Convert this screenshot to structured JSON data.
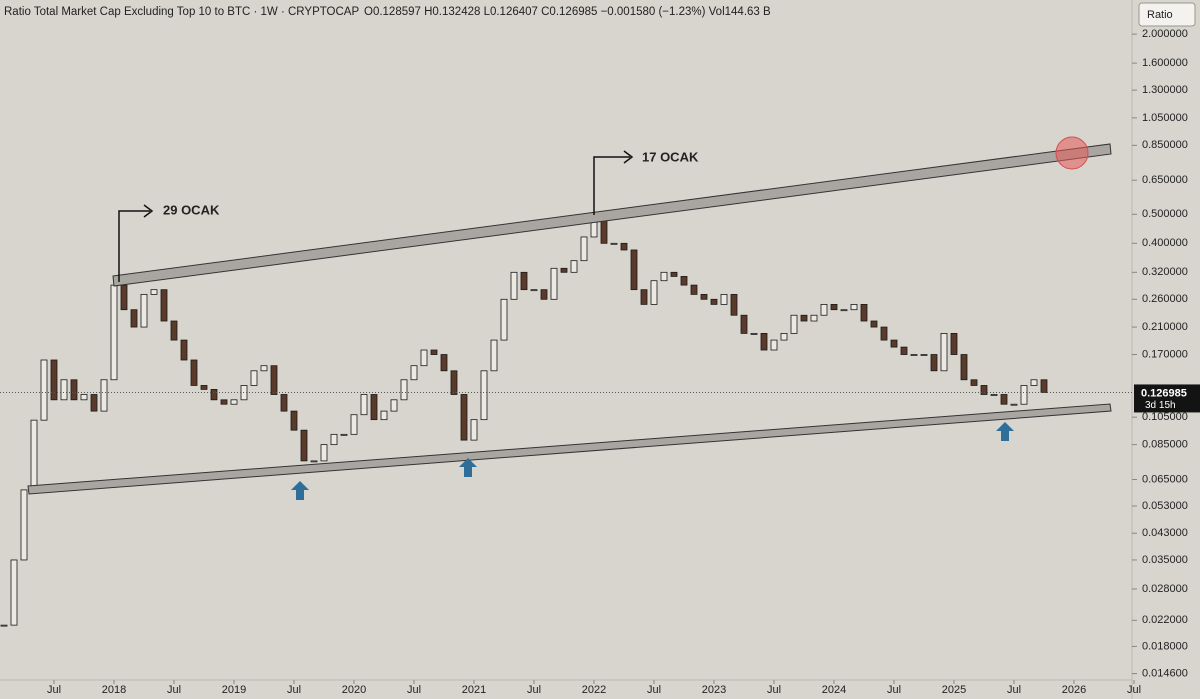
{
  "chart_data": {
    "type": "candlestick",
    "title": "Ratio Total Market Cap Excluding Top 10 to BTC · 1W · CRYPTOCAP",
    "ohlc_text": "O0.128597 H0.132428 L0.126407 C0.126985 −0.001580 (−1.23%) Vol144.63 B",
    "scale_button": "Ratio",
    "countdown": "3d 15h",
    "annotations": [
      "29 OCAK",
      "17 OCAK"
    ],
    "log_scale": true,
    "grid": false,
    "up_color": "#ece9e3",
    "down_color": "#5a3a28",
    "x": [
      "2017-02",
      "2017-03",
      "2017-04",
      "2017-05",
      "2017-06",
      "2017-07",
      "2017-08",
      "2017-09",
      "2017-10",
      "2017-11",
      "2017-12",
      "2018-01",
      "2018-02",
      "2018-03",
      "2018-04",
      "2018-05",
      "2018-06",
      "2018-07",
      "2018-08",
      "2018-09",
      "2018-10",
      "2018-11",
      "2018-12",
      "2019-01",
      "2019-02",
      "2019-03",
      "2019-04",
      "2019-05",
      "2019-06",
      "2019-07",
      "2019-08",
      "2019-09",
      "2019-10",
      "2019-11",
      "2019-12",
      "2020-01",
      "2020-02",
      "2020-03",
      "2020-04",
      "2020-05",
      "2020-06",
      "2020-07",
      "2020-08",
      "2020-09",
      "2020-10",
      "2020-11",
      "2020-12",
      "2021-01",
      "2021-02",
      "2021-03",
      "2021-04",
      "2021-05",
      "2021-06",
      "2021-07",
      "2021-08",
      "2021-09",
      "2021-10",
      "2021-11",
      "2021-12",
      "2022-01",
      "2022-02",
      "2022-03",
      "2022-04",
      "2022-05",
      "2022-06",
      "2022-07",
      "2022-08",
      "2022-09",
      "2022-10",
      "2022-11",
      "2022-12",
      "2023-01",
      "2023-02",
      "2023-03",
      "2023-04",
      "2023-05",
      "2023-06",
      "2023-07",
      "2023-08",
      "2023-09",
      "2023-10",
      "2023-11",
      "2023-12",
      "2024-01",
      "2024-02",
      "2024-03",
      "2024-04",
      "2024-05",
      "2024-06",
      "2024-07",
      "2024-08",
      "2024-09",
      "2024-10",
      "2024-11",
      "2024-12",
      "2025-01",
      "2025-02",
      "2025-03",
      "2025-04",
      "2025-05",
      "2025-06",
      "2025-07",
      "2025-08",
      "2025-09",
      "2025-10"
    ],
    "series": [
      {
        "name": "Ratio",
        "values": [
          0.0212,
          0.035,
          0.06,
          0.1026,
          0.163,
          0.12,
          0.14,
          0.12,
          0.125,
          0.11,
          0.14,
          0.29,
          0.24,
          0.21,
          0.27,
          0.28,
          0.22,
          0.19,
          0.163,
          0.134,
          0.13,
          0.12,
          0.116,
          0.12,
          0.134,
          0.15,
          0.156,
          0.125,
          0.11,
          0.095,
          0.075,
          0.075,
          0.085,
          0.092,
          0.092,
          0.107,
          0.125,
          0.103,
          0.11,
          0.12,
          0.14,
          0.156,
          0.176,
          0.17,
          0.15,
          0.125,
          0.088,
          0.103,
          0.15,
          0.19,
          0.26,
          0.32,
          0.28,
          0.28,
          0.26,
          0.33,
          0.32,
          0.35,
          0.42,
          0.48,
          0.4,
          0.4,
          0.38,
          0.28,
          0.25,
          0.3,
          0.32,
          0.31,
          0.29,
          0.27,
          0.26,
          0.25,
          0.27,
          0.23,
          0.2,
          0.2,
          0.176,
          0.19,
          0.2,
          0.23,
          0.22,
          0.23,
          0.25,
          0.24,
          0.24,
          0.25,
          0.22,
          0.21,
          0.19,
          0.18,
          0.17,
          0.17,
          0.17,
          0.15,
          0.2,
          0.17,
          0.14,
          0.134,
          0.125,
          0.125,
          0.116,
          0.116,
          0.134,
          0.14,
          0.126985
        ]
      }
    ],
    "ylim": [
      0.0139,
      2.6
    ],
    "yticks": [
      {
        "value": 2,
        "label": "2.000000"
      },
      {
        "value": 1.6,
        "label": "1.600000"
      },
      {
        "value": 1.3,
        "label": "1.300000"
      },
      {
        "value": 1.05,
        "label": "1.050000"
      },
      {
        "value": 0.85,
        "label": "0.850000"
      },
      {
        "value": 0.65,
        "label": "0.650000"
      },
      {
        "value": 0.5,
        "label": "0.500000"
      },
      {
        "value": 0.4,
        "label": "0.400000"
      },
      {
        "value": 0.32,
        "label": "0.320000"
      },
      {
        "value": 0.26,
        "label": "0.260000"
      },
      {
        "value": 0.21,
        "label": "0.210000"
      },
      {
        "value": 0.17,
        "label": "0.170000"
      },
      {
        "value": 0.105,
        "label": "0.105000"
      },
      {
        "value": 0.085,
        "label": "0.085000"
      },
      {
        "value": 0.065,
        "label": "0.065000"
      },
      {
        "value": 0.053,
        "label": "0.053000"
      },
      {
        "value": 0.043,
        "label": "0.043000"
      },
      {
        "value": 0.035,
        "label": "0.035000"
      },
      {
        "value": 0.028,
        "label": "0.028000"
      },
      {
        "value": 0.022,
        "label": "0.022000"
      },
      {
        "value": 0.018,
        "label": "0.018000"
      },
      {
        "value": 0.0146,
        "label": "0.014600"
      }
    ],
    "xticks": [
      {
        "value": "2017-07",
        "label": "Jul"
      },
      {
        "value": "2018-01",
        "label": "2018"
      },
      {
        "value": "2018-07",
        "label": "Jul"
      },
      {
        "value": "2019-01",
        "label": "2019"
      },
      {
        "value": "2019-07",
        "label": "Jul"
      },
      {
        "value": "2020-01",
        "label": "2020"
      },
      {
        "value": "2020-07",
        "label": "Jul"
      },
      {
        "value": "2021-01",
        "label": "2021"
      },
      {
        "value": "2021-07",
        "label": "Jul"
      },
      {
        "value": "2022-01",
        "label": "2022"
      },
      {
        "value": "2022-07",
        "label": "Jul"
      },
      {
        "value": "2023-01",
        "label": "2023"
      },
      {
        "value": "2023-07",
        "label": "Jul"
      },
      {
        "value": "2024-01",
        "label": "2024"
      },
      {
        "value": "2024-07",
        "label": "Jul"
      },
      {
        "value": "2025-01",
        "label": "2025"
      },
      {
        "value": "2025-07",
        "label": "Jul"
      },
      {
        "value": "2026-01",
        "label": "2026"
      },
      {
        "value": "2026-07",
        "label": "Jul"
      }
    ]
  }
}
